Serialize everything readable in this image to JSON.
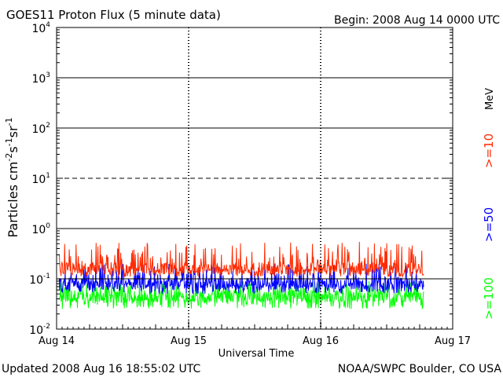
{
  "chart_data": {
    "type": "line",
    "title": "GOES11 Proton Flux (5 minute data)",
    "begin_label": "Begin: 2008 Aug 14 0000 UTC",
    "xlabel": "Universal Time",
    "ylabel": "Particles cm",
    "ylabel_sup1": "-2",
    "ylabel_mid1": "s",
    "ylabel_sup2": "-1",
    "ylabel_mid2": "sr",
    "ylabel_sup3": "-1",
    "unit_label": "MeV",
    "y_scale": "log",
    "ylim": [
      0.01,
      10000
    ],
    "xlim_days": [
      0,
      3
    ],
    "y_ticks": [
      {
        "base": "10",
        "exp": "4",
        "value": 10000
      },
      {
        "base": "10",
        "exp": "3",
        "value": 1000
      },
      {
        "base": "10",
        "exp": "2",
        "value": 100
      },
      {
        "base": "10",
        "exp": "1",
        "value": 10
      },
      {
        "base": "10",
        "exp": "0",
        "value": 1
      },
      {
        "base": "10",
        "exp": "-1",
        "value": 0.1
      },
      {
        "base": "10",
        "exp": "-2",
        "value": 0.01
      }
    ],
    "x_ticks": [
      {
        "label": "Aug 14",
        "day": 0
      },
      {
        "label": "Aug 15",
        "day": 1
      },
      {
        "label": "Aug 16",
        "day": 2
      },
      {
        "label": "Aug 17",
        "day": 3
      }
    ],
    "grid_solid_levels": [
      1000,
      100,
      1,
      0.1
    ],
    "grid_dashed_levels": [
      10
    ],
    "data_end_day": 2.78,
    "series": [
      {
        "name": ">=10",
        "color": "#ff2a00",
        "baseline": 0.16,
        "spread": [
          0.11,
          0.55
        ]
      },
      {
        "name": ">=50",
        "color": "#0000ff",
        "baseline": 0.08,
        "spread": [
          0.05,
          0.2
        ]
      },
      {
        "name": ">=100",
        "color": "#00ff00",
        "baseline": 0.045,
        "spread": [
          0.025,
          0.09
        ]
      }
    ]
  },
  "footer": {
    "updated": "Updated 2008 Aug 16 18:55:02 UTC",
    "credit": "NOAA/SWPC Boulder, CO USA"
  }
}
